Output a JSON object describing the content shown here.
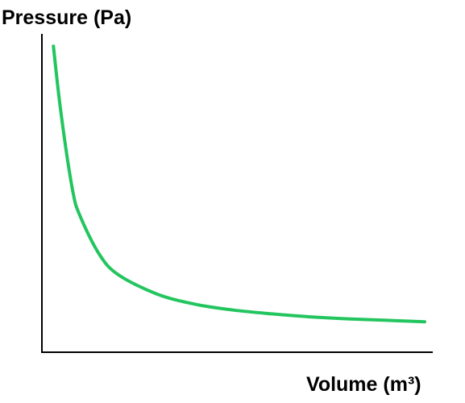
{
  "chart_data": {
    "type": "line",
    "title": "",
    "xlabel": "Volume (m³)",
    "ylabel": "Pressure (Pa)",
    "grid": false,
    "legend": "none",
    "xlim": [
      0,
      10
    ],
    "ylim": [
      0,
      10
    ],
    "series": [
      {
        "color": "#22c55e",
        "x": [
          0.3,
          0.5,
          0.8,
          1.0,
          1.5,
          2.0,
          3.0,
          4.0,
          5.0,
          6.0,
          7.0,
          8.0,
          9.0,
          10.0
        ],
        "y": [
          9.8,
          7.5,
          4.9,
          4.0,
          2.7,
          2.0,
          1.35,
          1.0,
          0.8,
          0.67,
          0.57,
          0.5,
          0.45,
          0.4
        ]
      }
    ]
  }
}
